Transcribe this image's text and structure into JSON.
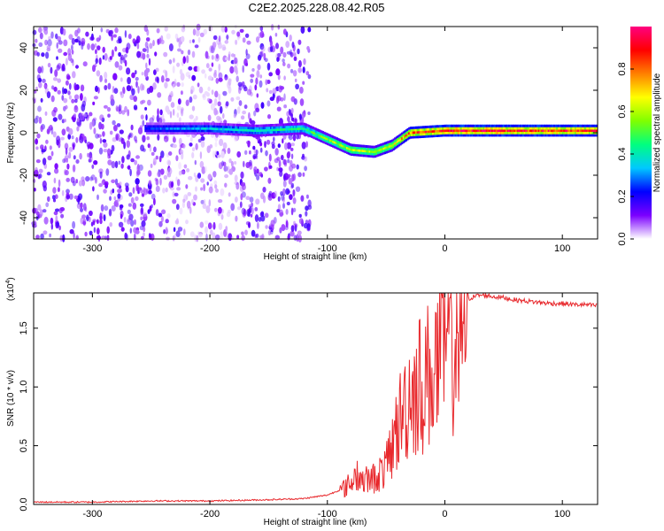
{
  "title": "C2E2.2025.228.08.42.R05",
  "chart_data": [
    {
      "type": "heatmap",
      "xlabel": "Height of straight line (km)",
      "ylabel": "Frequency (Hz)",
      "xlim": [
        -350,
        130
      ],
      "ylim": [
        -50,
        50
      ],
      "xticks": [
        -300,
        -200,
        -100,
        0,
        100
      ],
      "yticks": [
        -40,
        -20,
        0,
        20,
        40
      ],
      "colorbar": {
        "label": "Normalized spectral amplitude",
        "range": [
          0,
          1
        ],
        "ticks": [
          "0.0",
          "0.2",
          "0.4",
          "0.6",
          "0.8"
        ],
        "colors": [
          "#ffffff",
          "#7b00ff",
          "#0000ff",
          "#00c8ff",
          "#00ff80",
          "#80ff00",
          "#ffff00",
          "#ff8000",
          "#ff0000",
          "#ff0080"
        ]
      },
      "ridge": {
        "x": [
          -255,
          -200,
          -160,
          -120,
          -100,
          -80,
          -60,
          -45,
          -30,
          0,
          50,
          130
        ],
        "frequency_hz": [
          2,
          2,
          1,
          2,
          -3,
          -8,
          -9,
          -6,
          0,
          1,
          1,
          1
        ],
        "amplitude": [
          0.25,
          0.35,
          0.4,
          0.45,
          0.55,
          0.6,
          0.6,
          0.65,
          0.8,
          0.9,
          0.9,
          0.85
        ]
      },
      "noise_region_x": [
        -350,
        -115
      ]
    },
    {
      "type": "line",
      "xlabel": "Height of straight line (km)",
      "ylabel": "SNR (10 * v/v)",
      "y_scale_label": "(x10",
      "y_scale_exp": "4",
      "y_scale_close": ")",
      "xlim": [
        -350,
        130
      ],
      "ylim": [
        0,
        1.8
      ],
      "xticks": [
        -300,
        -200,
        -100,
        0,
        100
      ],
      "yticks": [
        "0.0",
        "0.5",
        "1.0",
        "1.5"
      ],
      "line_color": "#e8282c",
      "series": [
        {
          "x": [
            -350,
            -300,
            -250,
            -200,
            -150,
            -120,
            -100,
            -90,
            -80,
            -75,
            -70,
            -60,
            -50,
            -45,
            -40,
            -35,
            -30,
            -25,
            -20,
            -15,
            -10,
            -5,
            0,
            5,
            10,
            15,
            20,
            25,
            30,
            35,
            40,
            50,
            60,
            70,
            80,
            90,
            100,
            110,
            120,
            130
          ],
          "y": [
            0.02,
            0.02,
            0.03,
            0.03,
            0.04,
            0.05,
            0.08,
            0.12,
            0.2,
            0.3,
            0.22,
            0.25,
            0.35,
            0.55,
            0.75,
            0.9,
            1.05,
            1.1,
            1.15,
            1.2,
            1.3,
            1.35,
            1.45,
            1.55,
            1.65,
            1.72,
            1.75,
            1.77,
            1.78,
            1.78,
            1.77,
            1.76,
            1.74,
            1.73,
            1.72,
            1.71,
            1.71,
            1.7,
            1.7,
            1.69
          ]
        }
      ]
    }
  ]
}
